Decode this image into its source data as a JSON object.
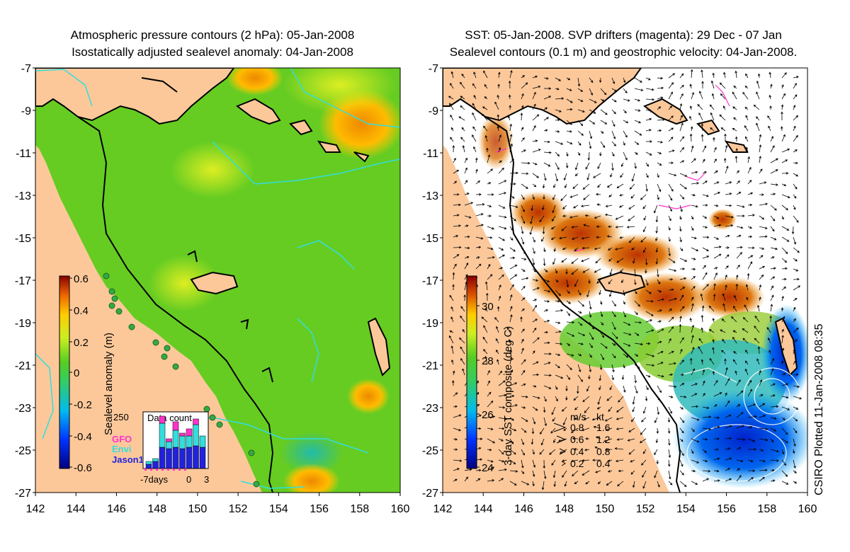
{
  "left_panel": {
    "title_line1": "Atmospheric pressure contours (2 hPa): 05-Jan-2008",
    "title_line2": "Isostatically adjusted sealevel anomaly: 04-Jan-2008",
    "colorbar_label": "Sealevel anomaly (m)",
    "colorbar_ticks": [
      "0.6",
      "0.4",
      "0.2",
      "0",
      "-0.2",
      "-0.4",
      "-0.6"
    ],
    "inset": {
      "title": "Data count",
      "ymax_label": "250",
      "x_labels": [
        "-7days",
        "0",
        "3"
      ],
      "legend": [
        {
          "label": "GFO",
          "color": "#ff33cc"
        },
        {
          "label": "Envi",
          "color": "#33dddd"
        },
        {
          "label": "Jason1",
          "color": "#2222dd"
        }
      ]
    }
  },
  "right_panel": {
    "title_line1": "SST: 05-Jan-2008. SVP drifters (magenta): 29 Dec - 07 Jan",
    "title_line2": "Sealevel contours (0.1 m) and geostrophic velocity: 04-Jan-2008.",
    "colorbar_label": "3-day SST composite (deg C)",
    "colorbar_ticks": [
      "30",
      "28",
      "26",
      "24"
    ],
    "velocity_legend": {
      "header_ms": "m/s",
      "header_kt": "kt",
      "rows": [
        {
          "ms": "0.8",
          "kt": "1.6"
        },
        {
          "ms": "0.6",
          "kt": "1.2"
        },
        {
          "ms": "0.4",
          "kt": "0.8"
        },
        {
          "ms": "0.2",
          "kt": "0.4"
        }
      ]
    }
  },
  "axes": {
    "lon_labels": [
      "142",
      "144",
      "146",
      "148",
      "150",
      "152",
      "154",
      "156",
      "158",
      "160"
    ],
    "lat_labels": [
      "-7",
      "-9",
      "-11",
      "-13",
      "-15",
      "-17",
      "-19",
      "-21",
      "-23",
      "-25",
      "-27"
    ]
  },
  "credit": "CSIRO Plotted 11-Jan-2008 08:35",
  "colors": {
    "land": "#fcc89a",
    "sea_green": "#44cc22",
    "contour": "#33dddd"
  }
}
